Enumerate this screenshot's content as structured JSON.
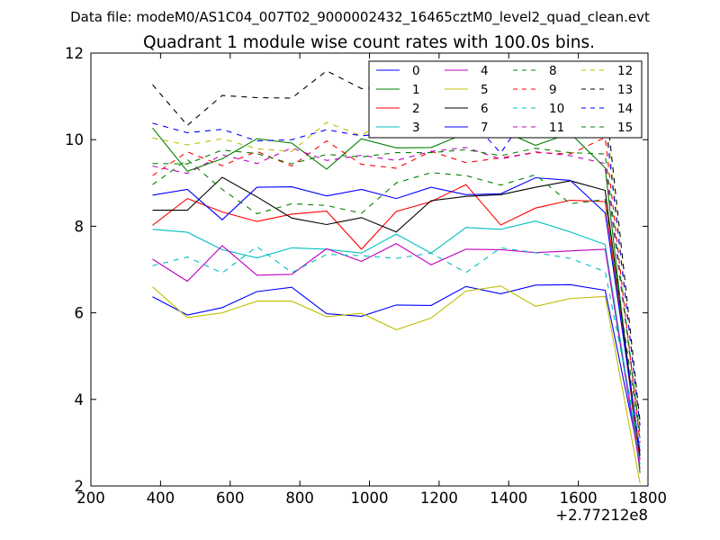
{
  "chart_data": {
    "type": "line",
    "suptitle": "Data file: modeM0/AS1C04_007T02_9000002432_16465cztM0_level2_quad_clean.evt",
    "title": "Quadrant 1 module wise count rates with 100.0s bins.",
    "xlabel": "",
    "ylabel": "",
    "xlim": [
      200,
      1800
    ],
    "ylim": [
      2,
      12
    ],
    "xticks": [
      200,
      400,
      600,
      800,
      1000,
      1200,
      1400,
      1600,
      1800
    ],
    "yticks": [
      2,
      4,
      6,
      8,
      10,
      12
    ],
    "x_offset_label": "+2.77212e8",
    "grid": false,
    "legend_position": "top-right",
    "x": [
      377,
      477,
      577,
      677,
      777,
      877,
      977,
      1077,
      1177,
      1277,
      1377,
      1477,
      1577,
      1677,
      1777
    ],
    "series": [
      {
        "name": "0",
        "color": "#0000ff",
        "dash": "solid",
        "values": [
          6.37,
          5.95,
          6.12,
          6.49,
          6.59,
          5.98,
          5.92,
          6.18,
          6.17,
          6.61,
          6.44,
          6.64,
          6.65,
          6.52,
          2.6
        ]
      },
      {
        "name": "1",
        "color": "#008000",
        "dash": "solid",
        "values": [
          10.27,
          9.27,
          9.56,
          10.02,
          9.92,
          9.32,
          10.02,
          9.81,
          9.82,
          10.15,
          10.22,
          9.87,
          10.15,
          9.35,
          2.3
        ]
      },
      {
        "name": "2",
        "color": "#ff0000",
        "dash": "solid",
        "values": [
          8.02,
          8.64,
          8.33,
          8.11,
          8.28,
          8.35,
          7.47,
          8.34,
          8.57,
          8.96,
          8.03,
          8.42,
          8.6,
          8.57,
          2.6
        ]
      },
      {
        "name": "3",
        "color": "#00bfbf",
        "dash": "solid",
        "values": [
          7.93,
          7.86,
          7.46,
          7.27,
          7.5,
          7.47,
          7.38,
          7.82,
          7.38,
          7.97,
          7.93,
          8.12,
          7.87,
          7.58,
          2.5
        ]
      },
      {
        "name": "4",
        "color": "#bf00bf",
        "dash": "solid",
        "values": [
          7.24,
          6.73,
          7.55,
          6.87,
          6.89,
          7.48,
          7.19,
          7.6,
          7.11,
          7.47,
          7.46,
          7.39,
          7.43,
          7.47,
          2.4
        ]
      },
      {
        "name": "5",
        "color": "#bfbf00",
        "dash": "solid",
        "values": [
          6.6,
          5.89,
          6.0,
          6.27,
          6.27,
          5.91,
          5.99,
          5.61,
          5.88,
          6.5,
          6.62,
          6.15,
          6.33,
          6.38,
          2.07
        ]
      },
      {
        "name": "6",
        "color": "#000000",
        "dash": "solid",
        "values": [
          8.37,
          8.37,
          9.13,
          8.68,
          8.19,
          8.04,
          8.2,
          7.87,
          8.59,
          8.69,
          8.73,
          8.9,
          9.05,
          8.83,
          2.7
        ]
      },
      {
        "name": "7",
        "color": "#0000ff",
        "dash": "solid",
        "values": [
          8.72,
          8.85,
          8.15,
          8.9,
          8.91,
          8.7,
          8.85,
          8.64,
          8.9,
          8.73,
          8.75,
          9.12,
          9.06,
          8.31,
          2.8
        ]
      },
      {
        "name": "8",
        "color": "#008000",
        "dash": "dashed",
        "values": [
          8.96,
          9.54,
          8.85,
          8.29,
          8.52,
          8.48,
          8.3,
          9.0,
          9.24,
          9.17,
          8.95,
          9.19,
          8.52,
          8.62,
          3.1
        ]
      },
      {
        "name": "9",
        "color": "#ff0000",
        "dash": "dashed",
        "values": [
          9.17,
          9.72,
          9.4,
          9.73,
          9.39,
          9.97,
          9.43,
          9.34,
          9.73,
          9.47,
          9.58,
          9.7,
          9.67,
          10.05,
          3.0
        ]
      },
      {
        "name": "10",
        "color": "#00bfbf",
        "dash": "dashed",
        "values": [
          7.09,
          7.29,
          6.92,
          7.53,
          6.93,
          7.35,
          7.32,
          7.26,
          7.38,
          6.93,
          7.5,
          7.39,
          7.26,
          6.95,
          2.9
        ]
      },
      {
        "name": "11",
        "color": "#bf00bf",
        "dash": "dashed",
        "values": [
          9.39,
          9.22,
          9.65,
          9.45,
          9.81,
          9.52,
          9.64,
          9.52,
          9.73,
          9.82,
          9.55,
          9.72,
          9.63,
          9.45,
          3.2
        ]
      },
      {
        "name": "12",
        "color": "#bfbf00",
        "dash": "dashed",
        "values": [
          10.04,
          9.88,
          10.02,
          9.79,
          9.73,
          10.4,
          10.09,
          10.64,
          10.64,
          10.75,
          10.35,
          10.8,
          10.62,
          10.69,
          3.3
        ]
      },
      {
        "name": "13",
        "color": "#000000",
        "dash": "dashed",
        "values": [
          11.27,
          10.33,
          11.02,
          10.97,
          10.96,
          11.59,
          11.18,
          11.23,
          11.38,
          11.55,
          10.99,
          11.13,
          11.4,
          11.01,
          3.5
        ]
      },
      {
        "name": "14",
        "color": "#0000ff",
        "dash": "dashed",
        "values": [
          10.38,
          10.16,
          10.24,
          9.97,
          10.0,
          10.23,
          10.09,
          10.16,
          10.6,
          10.58,
          9.69,
          10.9,
          11.05,
          10.46,
          3.4
        ]
      },
      {
        "name": "15",
        "color": "#008000",
        "dash": "dashed",
        "values": [
          9.45,
          9.44,
          9.76,
          9.68,
          9.44,
          9.66,
          9.6,
          9.7,
          9.7,
          9.77,
          9.63,
          9.8,
          9.7,
          9.67,
          3.2
        ]
      }
    ]
  }
}
